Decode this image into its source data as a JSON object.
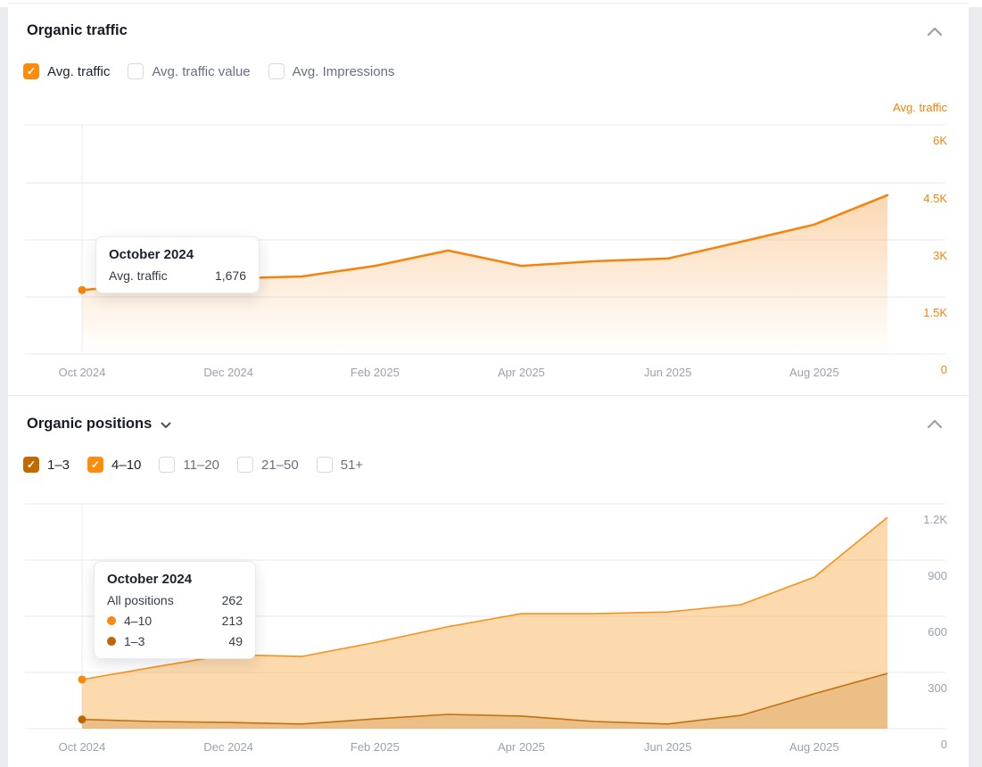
{
  "page": {
    "background": "#ebecef",
    "card_background": "#ffffff"
  },
  "organic_traffic": {
    "title": "Organic traffic",
    "collapse_icon": "chevron-up",
    "checkboxes": [
      {
        "label": "Avg. traffic",
        "checked": true,
        "color": "#fa8d0d"
      },
      {
        "label": "Avg. traffic value",
        "checked": false
      },
      {
        "label": "Avg. Impressions",
        "checked": false
      }
    ],
    "axis_legend": "Avg. traffic",
    "axis_legend_color": "#f5830d",
    "tooltip": {
      "title": "October 2024",
      "rows": [
        {
          "label": "Avg. traffic",
          "value": "1,676"
        }
      ]
    }
  },
  "organic_positions": {
    "title": "Organic positions",
    "title_icon": "chevron-down",
    "collapse_icon": "chevron-up",
    "checkboxes": [
      {
        "label": "1–3",
        "checked": true,
        "color": "#c26a00"
      },
      {
        "label": "4–10",
        "checked": true,
        "color": "#fa8d0d"
      },
      {
        "label": "11–20",
        "checked": false
      },
      {
        "label": "21–50",
        "checked": false
      },
      {
        "label": "51+",
        "checked": false
      }
    ],
    "tooltip": {
      "title": "October 2024",
      "rows": [
        {
          "label": "All positions",
          "value": "262",
          "dot": null
        },
        {
          "label": "4–10",
          "value": "213",
          "dot": "#f98a0d"
        },
        {
          "label": "1–3",
          "value": "49",
          "dot": "#bf6603"
        }
      ]
    }
  },
  "chart_data": [
    {
      "type": "area",
      "title": "Organic traffic",
      "x": [
        "Oct 2024",
        "Nov 2024",
        "Dec 2024",
        "Jan 2025",
        "Feb 2025",
        "Mar 2025",
        "Apr 2025",
        "May 2025",
        "Jun 2025",
        "Jul 2025",
        "Aug 2025",
        "Sep 2025"
      ],
      "series": [
        {
          "name": "Avg. traffic",
          "color": "#f5830d",
          "values": [
            1676,
            1840,
            1980,
            2030,
            2310,
            2710,
            2310,
            2430,
            2500,
            2940,
            3390,
            4160
          ]
        }
      ],
      "highlighted_point": {
        "x": "Oct 2024",
        "value": 1676
      },
      "ylim": [
        0,
        6000
      ],
      "y_ticks": [
        "6K",
        "4.5K",
        "3K",
        "1.5K",
        "0"
      ],
      "x_ticks": [
        "Oct 2024",
        "Dec 2024",
        "Feb 2025",
        "Apr 2025",
        "Jun 2025",
        "Aug 2025"
      ],
      "grid": true,
      "legend_position": "top-right"
    },
    {
      "type": "area-stacked",
      "title": "Organic positions",
      "x": [
        "Oct 2024",
        "Nov 2024",
        "Dec 2024",
        "Jan 2025",
        "Feb 2025",
        "Mar 2025",
        "Apr 2025",
        "May 2025",
        "Jun 2025",
        "Jul 2025",
        "Aug 2025",
        "Sep 2025"
      ],
      "series": [
        {
          "name": "1–3",
          "color": "#c4710d",
          "dot_color": "#bf6603",
          "fill": "rgba(186,110,25,0.25)",
          "values": [
            49,
            38,
            33,
            25,
            52,
            76,
            67,
            38,
            25,
            71,
            186,
            295
          ]
        },
        {
          "name": "4–10",
          "color": "#f6921e",
          "dot_color": "#f98a0d",
          "fill": "rgba(249,166,60,0.42)",
          "values": [
            213,
            292,
            362,
            360,
            408,
            469,
            547,
            576,
            598,
            591,
            623,
            833
          ]
        }
      ],
      "totals_label": "All positions",
      "totals": [
        262,
        330,
        395,
        385,
        460,
        545,
        614,
        614,
        623,
        662,
        809,
        1128
      ],
      "highlighted_point": {
        "x": "Oct 2024",
        "all_positions": 262,
        "pos_4_10": 213,
        "pos_1_3": 49
      },
      "ylim": [
        0,
        1200
      ],
      "y_ticks": [
        "1.2K",
        "900",
        "600",
        "300",
        "0"
      ],
      "x_ticks": [
        "Oct 2024",
        "Dec 2024",
        "Feb 2025",
        "Apr 2025",
        "Jun 2025",
        "Aug 2025"
      ],
      "grid": true
    }
  ]
}
